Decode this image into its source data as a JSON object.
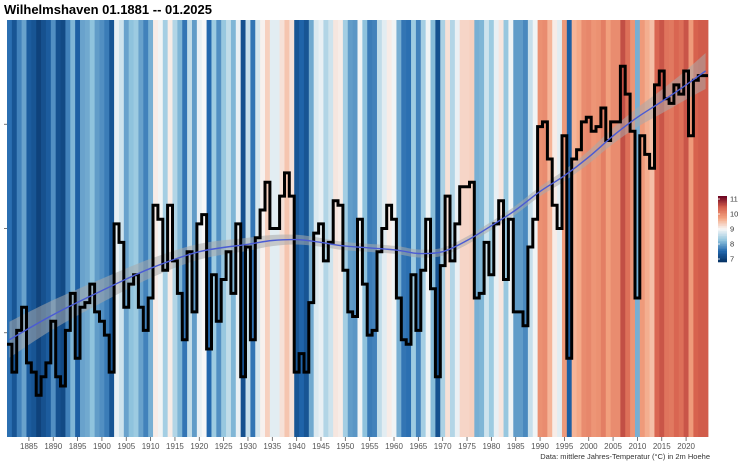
{
  "chart_data": {
    "type": "line",
    "title": "Wilhelmshaven 01.1881 -- 01.2025",
    "caption": "Data: mittlere Jahres-Temperatur (°C) in 2m Hoehe",
    "x_range": [
      1881,
      2024
    ],
    "ylim": [
      6.6,
      11.1
    ],
    "grid": false,
    "x_ticks": [
      1885,
      1890,
      1895,
      1900,
      1905,
      1910,
      1915,
      1920,
      1925,
      1930,
      1935,
      1940,
      1945,
      1950,
      1955,
      1960,
      1965,
      1970,
      1975,
      1980,
      1985,
      1990,
      1995,
      2000,
      2005,
      2010,
      2015,
      2020
    ],
    "legend": {
      "placement": "right",
      "ticks": [
        7,
        8,
        9,
        10,
        11
      ],
      "range": [
        6.8,
        11.2
      ]
    },
    "colors": {
      "cold": "#053061",
      "cool": "#2166ac",
      "mild": "#92c5de",
      "neutral": "#f7f7f7",
      "warm": "#f4a582",
      "hot": "#d6604d",
      "hottest": "#67001f",
      "line": "#000000",
      "smooth": "#4a5bd4",
      "band": "#a9a9a9"
    },
    "series": [
      {
        "x": [
          1881,
          1882,
          1883,
          1884,
          1885,
          1886,
          1887,
          1888,
          1889,
          1890,
          1891,
          1892,
          1893,
          1894,
          1895,
          1896,
          1897,
          1898,
          1899,
          1900,
          1901,
          1902,
          1903,
          1904,
          1905,
          1906,
          1907,
          1908,
          1909,
          1910,
          1911,
          1912,
          1913,
          1914,
          1915,
          1916,
          1917,
          1918,
          1919,
          1920,
          1921,
          1922,
          1923,
          1924,
          1925,
          1926,
          1927,
          1928,
          1929,
          1930,
          1931,
          1932,
          1933,
          1934,
          1935,
          1936,
          1937,
          1938,
          1939,
          1940,
          1941,
          1942,
          1943,
          1944,
          1945,
          1946,
          1947,
          1948,
          1949,
          1950,
          1951,
          1952,
          1953,
          1954,
          1955,
          1956,
          1957,
          1958,
          1959,
          1960,
          1961,
          1962,
          1963,
          1964,
          1965,
          1966,
          1967,
          1968,
          1969,
          1970,
          1971,
          1972,
          1973,
          1974,
          1975,
          1976,
          1977,
          1978,
          1979,
          1980,
          1981,
          1982,
          1983,
          1984,
          1985,
          1986,
          1987,
          1988,
          1989,
          1990,
          1991,
          1992,
          1993,
          1994,
          1995,
          1996,
          1997,
          1998,
          1999,
          2000,
          2001,
          2002,
          2003,
          2004,
          2005,
          2006,
          2007,
          2008,
          2009,
          2010,
          2011,
          2012,
          2013,
          2014,
          2015,
          2016,
          2017,
          2018,
          2019,
          2020,
          2021,
          2022,
          2023,
          2024
        ],
        "values": [
          7.6,
          7.3,
          7.75,
          8.0,
          7.4,
          7.3,
          7.05,
          7.25,
          7.4,
          7.85,
          7.25,
          7.15,
          7.75,
          8.15,
          7.45,
          8.0,
          8.05,
          8.25,
          7.95,
          7.85,
          7.7,
          7.3,
          8.9,
          8.7,
          8.0,
          8.25,
          8.35,
          8.0,
          7.75,
          8.1,
          9.1,
          8.95,
          8.4,
          9.1,
          8.5,
          8.15,
          7.65,
          8.6,
          7.95,
          8.9,
          9.0,
          7.55,
          8.35,
          7.85,
          8.3,
          8.6,
          8.15,
          8.9,
          7.25,
          8.65,
          7.65,
          8.75,
          9.05,
          9.35,
          8.85,
          8.85,
          9.2,
          9.45,
          9.2,
          7.3,
          7.5,
          7.3,
          8.05,
          8.8,
          8.9,
          8.5,
          8.7,
          9.15,
          9.1,
          8.4,
          7.95,
          7.9,
          8.95,
          8.25,
          7.7,
          7.75,
          8.6,
          8.85,
          9.1,
          8.95,
          8.1,
          7.65,
          7.6,
          8.35,
          7.75,
          8.4,
          8.95,
          8.2,
          7.25,
          8.45,
          9.2,
          8.5,
          8.9,
          9.3,
          9.3,
          9.35,
          8.1,
          8.15,
          8.7,
          8.35,
          8.9,
          9.15,
          8.3,
          8.95,
          7.95,
          7.95,
          7.8,
          8.65,
          8.95,
          9.95,
          10.0,
          9.6,
          9.1,
          8.85,
          9.85,
          7.45,
          9.6,
          9.7,
          10.0,
          10.05,
          9.9,
          9.95,
          10.15,
          9.8,
          10.0,
          10.0,
          10.6,
          10.3,
          9.9,
          8.1,
          9.85,
          9.65,
          9.5,
          10.4,
          10.55,
          10.25,
          10.2,
          10.4,
          10.3,
          10.55,
          9.85,
          10.45,
          10.5,
          10.5
        ]
      },
      {
        "name_note": "smoothed trend",
        "x": [
          1881,
          1890,
          1900,
          1910,
          1920,
          1930,
          1935,
          1940,
          1945,
          1950,
          1960,
          1965,
          1970,
          1975,
          1980,
          1985,
          1990,
          1995,
          2000,
          2005,
          2010,
          2015,
          2020,
          2024
        ],
        "values": [
          7.65,
          7.92,
          8.18,
          8.42,
          8.6,
          8.68,
          8.72,
          8.73,
          8.7,
          8.66,
          8.62,
          8.58,
          8.6,
          8.72,
          8.88,
          9.05,
          9.25,
          9.42,
          9.62,
          9.85,
          10.05,
          10.22,
          10.4,
          10.55
        ]
      }
    ]
  }
}
